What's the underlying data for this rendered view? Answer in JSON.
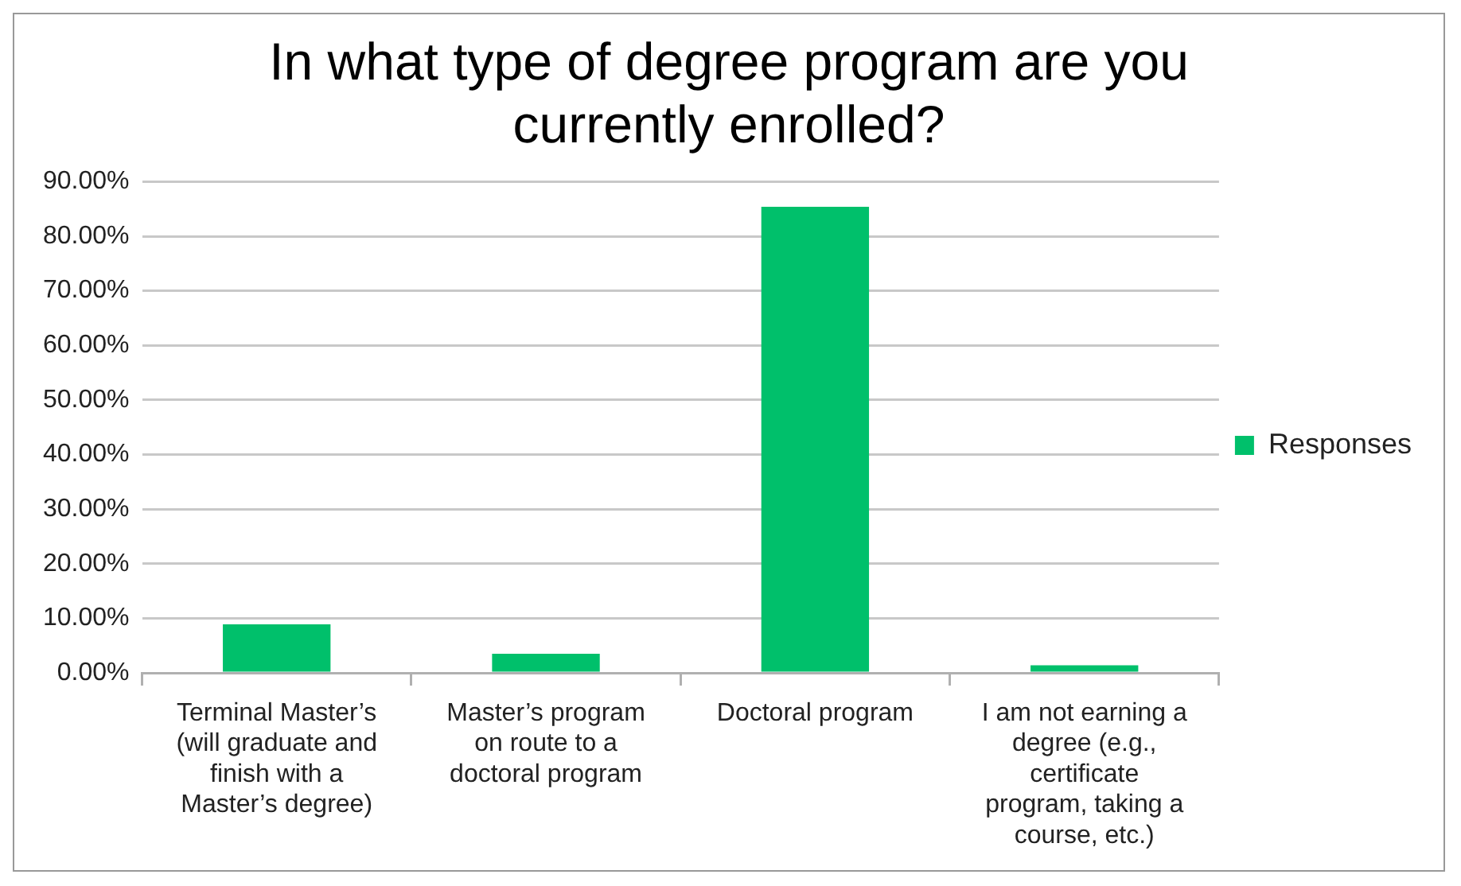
{
  "chart_data": {
    "type": "bar",
    "title": "In what type of degree program are you currently enrolled?",
    "categories": [
      "Terminal Master’s (will graduate and finish with a Master’s degree)",
      "Master’s program on route to a doctoral program",
      "Doctoral program",
      "I am not earning a degree (e.g., certificate program, taking a course, etc.)"
    ],
    "series": [
      {
        "name": "Responses",
        "color": "#00c06b",
        "values": [
          8.9,
          3.5,
          85.4,
          1.4
        ]
      }
    ],
    "ylim": [
      0,
      90
    ],
    "yticks": [
      {
        "value": 0,
        "label": "0.00%"
      },
      {
        "value": 10,
        "label": "10.00%"
      },
      {
        "value": 20,
        "label": "20.00%"
      },
      {
        "value": 30,
        "label": "30.00%"
      },
      {
        "value": 40,
        "label": "40.00%"
      },
      {
        "value": 50,
        "label": "50.00%"
      },
      {
        "value": 60,
        "label": "60.00%"
      },
      {
        "value": 70,
        "label": "70.00%"
      },
      {
        "value": 80,
        "label": "80.00%"
      },
      {
        "value": 90,
        "label": "90.00%"
      }
    ],
    "grid": "y",
    "legend": "right"
  }
}
